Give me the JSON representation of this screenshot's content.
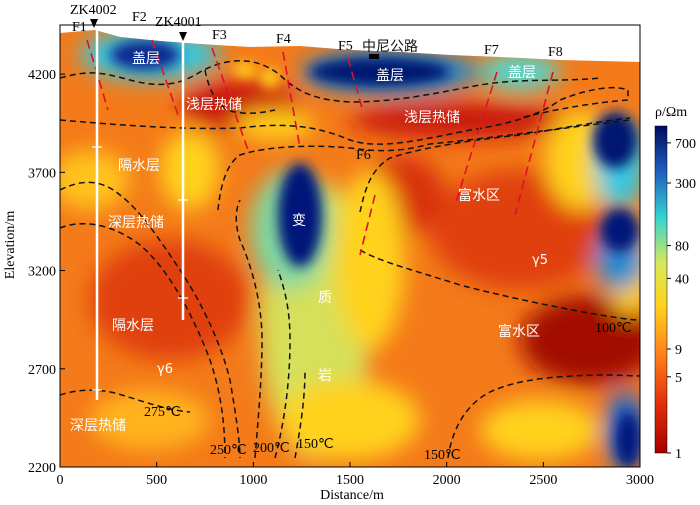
{
  "chart_data": {
    "type": "heatmap",
    "title": "",
    "xlabel": "Distance/m",
    "ylabel": "Elevation/m",
    "xlim": [
      0,
      3000
    ],
    "ylim": [
      2200,
      4450
    ],
    "xticks": [
      0,
      500,
      1000,
      1500,
      2000,
      2500,
      3000
    ],
    "yticks": [
      2200,
      2700,
      3200,
      3700,
      4200
    ],
    "colorbar": {
      "label": "ρ/Ωm",
      "ticks": [
        1,
        5,
        9,
        40,
        80,
        300,
        700
      ],
      "scale": "log",
      "colors": [
        "#a50000",
        "#e0300a",
        "#ff7f1a",
        "#ffd21e",
        "#d8e85a",
        "#35d3d0",
        "#1e5fc0",
        "#000a60"
      ]
    },
    "boreholes": [
      {
        "name": "ZK4002",
        "x": 200
      },
      {
        "name": "ZK4001",
        "x": 640
      }
    ],
    "faults": [
      "F1",
      "F2",
      "F3",
      "F4",
      "F5",
      "F6",
      "F7",
      "F8"
    ],
    "road_label": "中尼公路",
    "zone_labels": {
      "caprock": "盖层",
      "shallow_reservoir": "浅层热储",
      "aquitard": "隔水层",
      "deep_reservoir": "深层热储",
      "altered": [
        "变",
        "质",
        "岩"
      ],
      "water_rich": "富水区",
      "granite_g5": "γ5",
      "granite_g6": "γ6"
    },
    "isotherms": [
      "275℃",
      "250℃",
      "200℃",
      "150℃",
      "150℃",
      "100℃"
    ]
  }
}
